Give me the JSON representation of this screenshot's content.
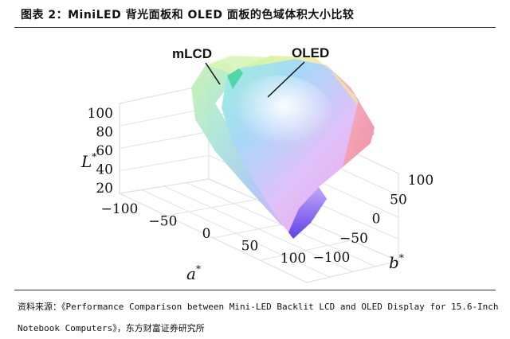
{
  "title": "图表 2：MiniLED 背光面板和 OLED 面板的色域体积大小比较",
  "source_line1": "资料来源：《Performance Comparison between Mini-LED Backlit LCD and OLED Display for 15.6-Inch",
  "source_line2": "Notebook Computers》，东方财富证券研究所",
  "chart_data": {
    "type": "3d-gamut-volume",
    "title": "",
    "axes": {
      "L": {
        "label": "L",
        "label_sup": "*",
        "ticks": [
          "20",
          "40",
          "60",
          "80",
          "100"
        ],
        "range": [
          20,
          100
        ]
      },
      "a": {
        "label": "a",
        "label_sup": "*",
        "ticks": [
          "−100",
          "−50",
          "0",
          "50",
          "100"
        ],
        "range": [
          -100,
          100
        ]
      },
      "b": {
        "label": "b",
        "label_sup": "*",
        "ticks": [
          "100",
          "50",
          "0",
          "−50",
          "−100"
        ],
        "range": [
          -100,
          100
        ]
      }
    },
    "series": [
      {
        "name": "mLCD",
        "color": "#9fe0c8"
      },
      {
        "name": "OLED",
        "color": "#f4a0c0"
      }
    ],
    "grid": true
  }
}
